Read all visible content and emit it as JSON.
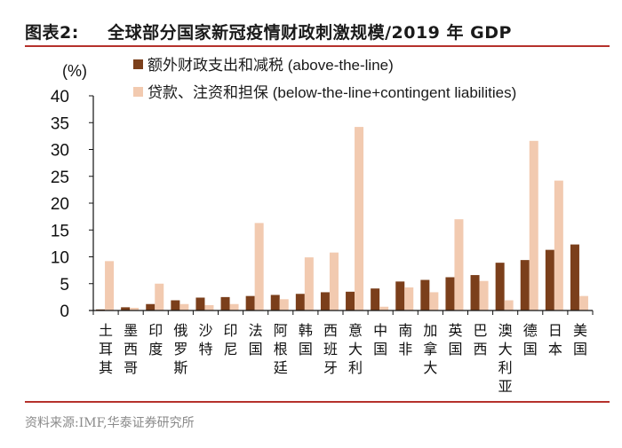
{
  "header": {
    "figure_label": "图表2:",
    "title": "全球部分国家新冠疫情财政刺激规模/2019 年 GDP"
  },
  "footer": {
    "source": "资料来源:IMF,华泰证券研究所"
  },
  "colors": {
    "rule": "#b5312c",
    "above_the_line": "#7b3f1b",
    "below_the_line": "#f2cab0"
  },
  "chart_data": {
    "type": "bar",
    "title": "全球部分国家新冠疫情财政刺激规模/2019 年 GDP",
    "ylabel": "(%)",
    "xlabel": "",
    "ylim": [
      0,
      40
    ],
    "yticks": [
      0,
      5,
      10,
      15,
      20,
      25,
      30,
      35,
      40
    ],
    "grid": false,
    "legend_position": "top",
    "categories": [
      "土耳其",
      "墨西哥",
      "印度",
      "俄罗斯",
      "沙特",
      "印尼",
      "法国",
      "阿根廷",
      "韩国",
      "西班牙",
      "意大利",
      "中国",
      "南非",
      "加拿大",
      "英国",
      "巴西",
      "澳大利亚",
      "德国",
      "日本",
      "美国"
    ],
    "series": [
      {
        "name": "额外财政支出和减税 (above-the-line)",
        "color": "#7b3f1b",
        "values": [
          0.2,
          0.6,
          1.2,
          1.9,
          2.4,
          2.5,
          2.7,
          2.9,
          3.1,
          3.4,
          3.5,
          4.1,
          5.4,
          5.7,
          6.2,
          6.6,
          8.9,
          9.4,
          11.3,
          12.3
        ]
      },
      {
        "name": "贷款、注资和担保 (below-the-line+contingent liabilities)",
        "color": "#f2cab0",
        "values": [
          9.2,
          0.5,
          5.0,
          1.2,
          1.0,
          1.2,
          16.3,
          2.1,
          9.9,
          10.8,
          34.2,
          0.7,
          4.3,
          3.4,
          17.0,
          5.5,
          1.9,
          31.6,
          24.2,
          2.7
        ]
      }
    ]
  }
}
